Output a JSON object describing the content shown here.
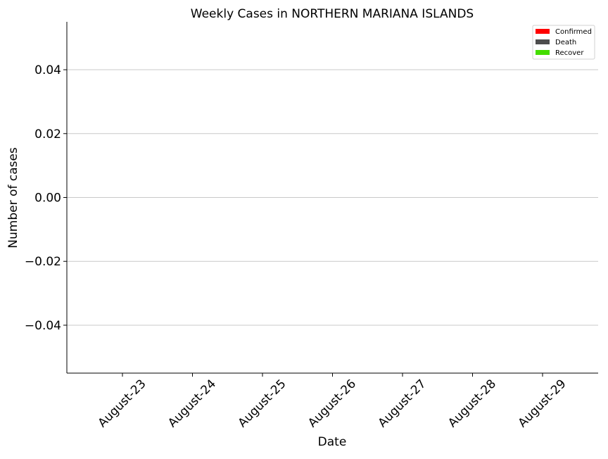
{
  "chart_data": {
    "type": "bar",
    "title": "Weekly Cases in NORTHERN MARIANA ISLANDS",
    "xlabel": "Date",
    "ylabel": "Number of cases",
    "categories": [
      "August-23",
      "August-24",
      "August-25",
      "August-26",
      "August-27",
      "August-28",
      "August-29"
    ],
    "series": [
      {
        "name": "Confirmed",
        "color": "#ff0000",
        "values": [
          0,
          0,
          0,
          0,
          0,
          0,
          0
        ]
      },
      {
        "name": "Death",
        "color": "#4d4d4d",
        "values": [
          0,
          0,
          0,
          0,
          0,
          0,
          0
        ]
      },
      {
        "name": "Recover",
        "color": "#44dd00",
        "values": [
          0,
          0,
          0,
          0,
          0,
          0,
          0
        ]
      }
    ],
    "ylim": [
      -0.055,
      0.055
    ],
    "yticks": [
      0.04,
      0.02,
      0.0,
      -0.02,
      -0.04
    ],
    "ytick_labels": [
      "0.04",
      "0.02",
      "0.00",
      "−0.02",
      "−0.04"
    ],
    "grid": "horizontal",
    "legend_position": "top-right"
  }
}
